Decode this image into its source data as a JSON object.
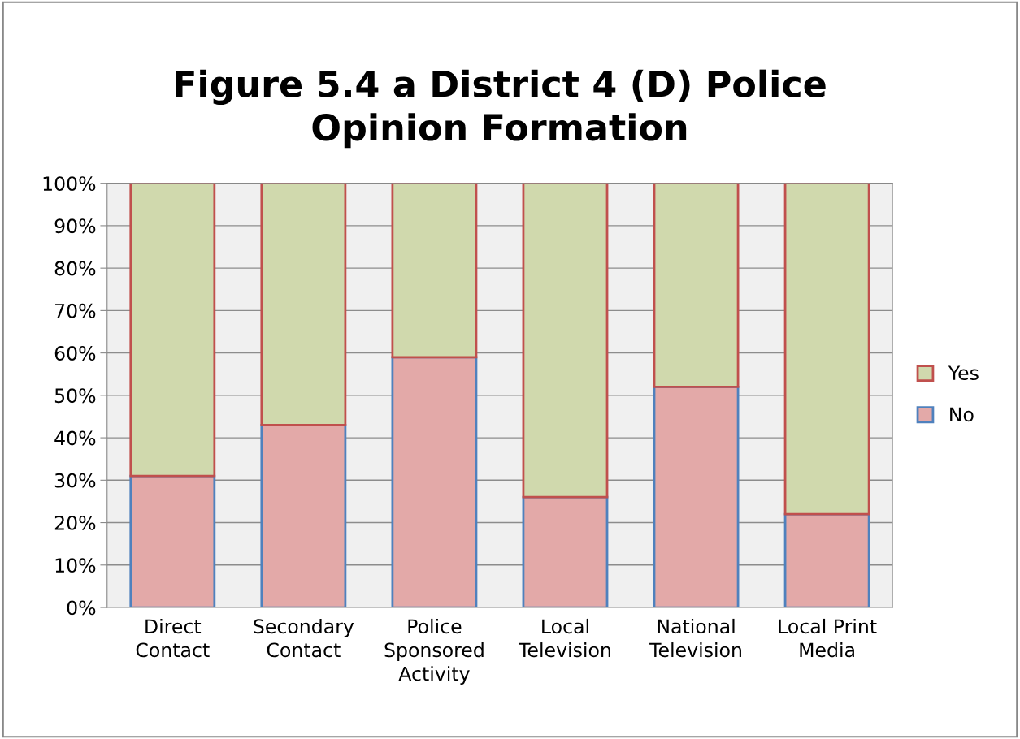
{
  "chart_data": {
    "type": "bar",
    "title": "Figure 5.4 a District 4 (D) Police\nOpinion Formation",
    "stacked": true,
    "categories": [
      "Direct\nContact",
      "Secondary\nContact",
      "Police\nSponsored\nActivity",
      "Local\nTelevision",
      "National\nTelevision",
      "Local Print\nMedia"
    ],
    "series": [
      {
        "name": "No",
        "color": "#e3a9a8",
        "values": [
          31,
          43,
          59,
          26,
          52,
          22
        ]
      },
      {
        "name": "Yes",
        "color": "#d0d9ad",
        "values": [
          69,
          57,
          41,
          74,
          48,
          78
        ]
      }
    ],
    "ylim": [
      0,
      100
    ],
    "yticks": [
      {
        "value": 0,
        "label": "0%"
      },
      {
        "value": 10,
        "label": "10%"
      },
      {
        "value": 20,
        "label": "20%"
      },
      {
        "value": 30,
        "label": "30%"
      },
      {
        "value": 40,
        "label": "40%"
      },
      {
        "value": 50,
        "label": "50%"
      },
      {
        "value": 60,
        "label": "60%"
      },
      {
        "value": 70,
        "label": "70%"
      },
      {
        "value": 80,
        "label": "80%"
      },
      {
        "value": 90,
        "label": "90%"
      },
      {
        "value": 100,
        "label": "100%"
      }
    ],
    "grid": "y",
    "legend": "right"
  }
}
